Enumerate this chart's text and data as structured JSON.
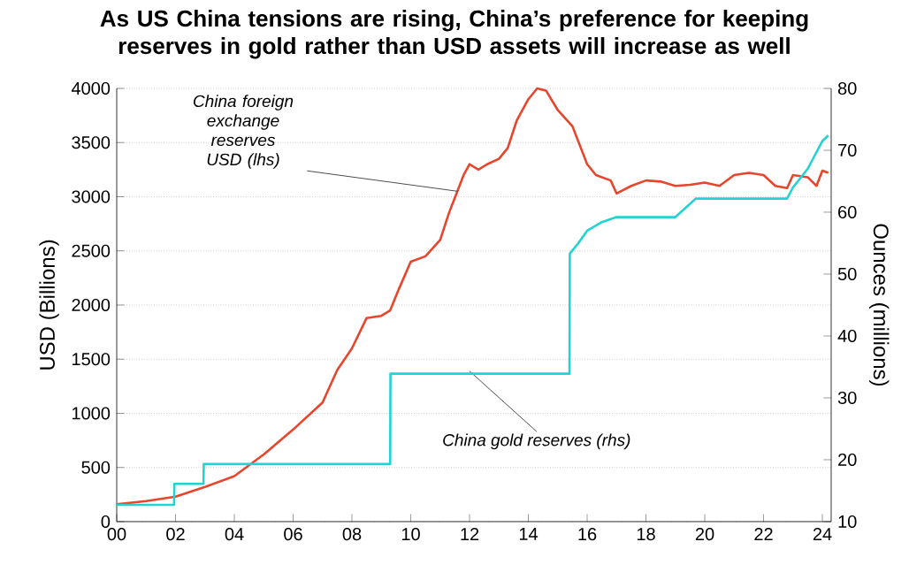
{
  "chart_data": {
    "type": "line",
    "title": "As US China tensions are rising, China’s preference for keeping reserves in gold rather than USD assets will increase as well",
    "ylabel": "USD (Billions)",
    "y2label": "Ounces (millions)",
    "xlim": [
      0,
      24.3
    ],
    "xticks": [
      {
        "value": 0,
        "label": "00"
      },
      {
        "value": 2,
        "label": "02"
      },
      {
        "value": 4,
        "label": "04"
      },
      {
        "value": 6,
        "label": "06"
      },
      {
        "value": 8,
        "label": "08"
      },
      {
        "value": 10,
        "label": "10"
      },
      {
        "value": 12,
        "label": "12"
      },
      {
        "value": 14,
        "label": "14"
      },
      {
        "value": 16,
        "label": "16"
      },
      {
        "value": 18,
        "label": "18"
      },
      {
        "value": 20,
        "label": "20"
      },
      {
        "value": 22,
        "label": "22"
      },
      {
        "value": 24,
        "label": "24"
      }
    ],
    "ylim": [
      0,
      4000
    ],
    "yticks": [
      0,
      500,
      1000,
      1500,
      2000,
      2500,
      3000,
      3500,
      4000
    ],
    "y2lim": [
      10,
      80
    ],
    "y2ticks": [
      10,
      20,
      30,
      40,
      50,
      60,
      70,
      80
    ],
    "grid": "y",
    "marker": "none",
    "line_style": "solid",
    "series": [
      {
        "color": "#e8452c",
        "x": [
          0,
          1,
          2,
          3,
          4,
          5,
          6,
          7,
          7.5,
          8,
          8.5,
          9,
          9.3,
          9.6,
          10,
          10.5,
          11,
          11.3,
          11.8,
          12,
          12.3,
          12.6,
          13,
          13.3,
          13.6,
          14,
          14.3,
          14.6,
          15,
          15.5,
          16,
          16.3,
          16.8,
          17,
          17.5,
          18,
          18.5,
          19,
          19.5,
          20,
          20.5,
          21,
          21.5,
          22,
          22.4,
          22.8,
          23,
          23.5,
          23.8,
          24,
          24.2
        ],
        "values": [
          160,
          190,
          230,
          320,
          420,
          620,
          850,
          1100,
          1400,
          1600,
          1880,
          1900,
          1950,
          2150,
          2400,
          2450,
          2600,
          2850,
          3200,
          3300,
          3250,
          3300,
          3350,
          3450,
          3700,
          3900,
          4000,
          3980,
          3800,
          3650,
          3300,
          3200,
          3150,
          3030,
          3100,
          3150,
          3140,
          3100,
          3110,
          3130,
          3100,
          3200,
          3220,
          3200,
          3100,
          3080,
          3200,
          3180,
          3100,
          3240,
          3220
        ]
      },
      {
        "color": "#22d3d3",
        "axis": "y2",
        "x": [
          0,
          1.95,
          1.96,
          2.95,
          2.96,
          9.3,
          9.31,
          15.4,
          15.41,
          15.7,
          16,
          16.5,
          17,
          19,
          19.7,
          22.8,
          23,
          23.5,
          24,
          24.2
        ],
        "values": [
          12.7,
          12.7,
          16.1,
          16.1,
          19.3,
          19.3,
          33.9,
          33.9,
          53.3,
          55,
          57,
          58.4,
          59.2,
          59.2,
          62.2,
          62.2,
          64,
          67,
          71.5,
          72.4
        ]
      }
    ],
    "annotations": [
      {
        "text": "China foreign exchange reserves USD (lhs)",
        "x": 11.6,
        "y": 3050
      },
      {
        "text": "China gold reserves (rhs)",
        "x": 12.0,
        "y": 1390
      }
    ]
  }
}
